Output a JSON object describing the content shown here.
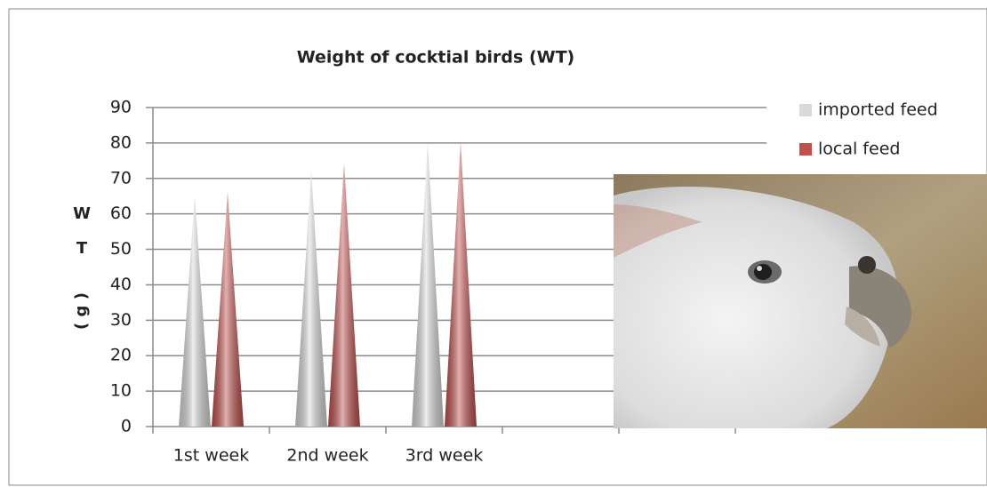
{
  "chart_data": {
    "type": "cone_bar",
    "title": "Weight of cocktial birds (WT)",
    "ylabel_letters": [
      "W",
      "T"
    ],
    "ylabel_unit": "( g )",
    "categories": [
      "1st  week",
      "2nd week",
      "3rd week",
      null,
      null
    ],
    "series": [
      {
        "name": "imported feed",
        "color": "#d9d9d9",
        "values": [
          65,
          72,
          80,
          null,
          null
        ]
      },
      {
        "name": "local feed",
        "color": "#c0504d",
        "values": [
          66,
          74,
          80,
          null,
          null
        ]
      }
    ],
    "ylim": [
      0,
      90
    ],
    "yticks": [
      0,
      10,
      20,
      30,
      40,
      50,
      60,
      70,
      80,
      90
    ],
    "grid": true,
    "legend": "top-right"
  }
}
